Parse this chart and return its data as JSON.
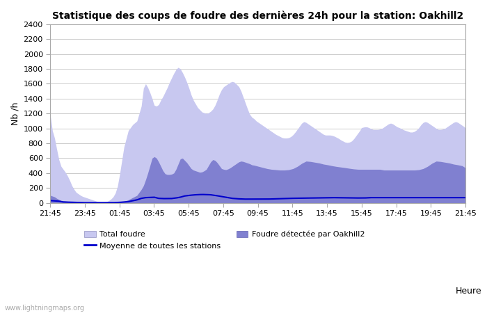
{
  "title": "Statistique des coups de foudre des dernières 24h pour la station: Oakhill2",
  "xlabel": "Heure",
  "ylabel": "Nb /h",
  "xlim_labels": [
    "21:45",
    "23:45",
    "01:45",
    "03:45",
    "05:45",
    "07:45",
    "09:45",
    "11:45",
    "13:45",
    "15:45",
    "17:45",
    "19:45",
    "21:45"
  ],
  "ylim": [
    0,
    2400
  ],
  "yticks": [
    0,
    200,
    400,
    600,
    800,
    1000,
    1200,
    1400,
    1600,
    1800,
    2000,
    2200,
    2400
  ],
  "color_total": "#c8c8f0",
  "color_detected": "#8080d0",
  "color_mean": "#0000cc",
  "watermark": "www.lightningmaps.org",
  "legend_total": "Total foudre",
  "legend_detected": "Foudre détectée par Oakhill2",
  "legend_mean": "Moyenne de toutes les stations",
  "total_keypoints_x": [
    0,
    2,
    4,
    6,
    8,
    10,
    12,
    14,
    16,
    18,
    20,
    22,
    24,
    26,
    28,
    30,
    32,
    36,
    40,
    44,
    48,
    50,
    52,
    54,
    56,
    58,
    60,
    62,
    64,
    68,
    72,
    76,
    80,
    82,
    84,
    86,
    88,
    90,
    92,
    94,
    95,
    96
  ],
  "total_keypoints_y": [
    1180,
    970,
    870,
    720,
    580,
    490,
    450,
    410,
    360,
    300,
    230,
    180,
    140,
    120,
    100,
    85,
    75,
    55,
    35,
    15,
    10,
    10,
    15,
    30,
    50,
    80,
    130,
    220,
    380,
    750,
    970,
    1050,
    1100,
    1200,
    1300,
    1540,
    1600,
    1550,
    1480,
    1400,
    1350,
    1310
  ],
  "total_keypoints_x2": [
    96,
    98,
    100,
    102,
    104,
    106,
    108,
    110,
    112,
    114,
    116,
    118,
    120,
    122,
    124,
    126,
    128,
    130,
    132,
    134,
    136,
    138,
    140,
    142,
    144,
    146,
    148,
    150,
    152,
    154,
    156,
    158,
    160,
    162,
    164,
    166,
    168,
    170,
    172,
    174,
    176,
    178,
    180,
    182,
    184,
    186,
    188,
    190,
    192
  ],
  "total_keypoints_y2": [
    1310,
    1300,
    1320,
    1380,
    1430,
    1490,
    1550,
    1620,
    1680,
    1740,
    1790,
    1820,
    1800,
    1750,
    1690,
    1620,
    1540,
    1450,
    1380,
    1330,
    1280,
    1250,
    1220,
    1210,
    1200,
    1210,
    1230,
    1260,
    1310,
    1380,
    1460,
    1520,
    1560,
    1580,
    1600,
    1620,
    1630,
    1620,
    1590,
    1560,
    1500,
    1420,
    1340,
    1260,
    1190,
    1150,
    1130,
    1100,
    1080
  ],
  "total_keypoints_x3": [
    192,
    194,
    196,
    198,
    200,
    202,
    204,
    206,
    208,
    210,
    212,
    214,
    216,
    218,
    220,
    222,
    224,
    226,
    228,
    230,
    232,
    234,
    236,
    238,
    240,
    242,
    244,
    246,
    248,
    250,
    252,
    254,
    256,
    258,
    260,
    262,
    264,
    266,
    268,
    270,
    272,
    274,
    276,
    278,
    280,
    282,
    284,
    286,
    287
  ],
  "total_keypoints_y3": [
    1080,
    1060,
    1040,
    1020,
    1000,
    980,
    960,
    940,
    920,
    905,
    890,
    875,
    870,
    870,
    875,
    890,
    915,
    950,
    990,
    1030,
    1070,
    1090,
    1080,
    1060,
    1040,
    1020,
    1000,
    980,
    960,
    940,
    920,
    910,
    910,
    910,
    905,
    895,
    880,
    865,
    845,
    830,
    815,
    810,
    815,
    830,
    860,
    900,
    940,
    980,
    1010
  ],
  "total_keypoints_x4": [
    287,
    290,
    292,
    294,
    296,
    298,
    300,
    302,
    304,
    306,
    308,
    310,
    312,
    314,
    316,
    318,
    320,
    322,
    324,
    326,
    328,
    330,
    332,
    334,
    336,
    338,
    340,
    342,
    344,
    346,
    348,
    350,
    352,
    354,
    356,
    358,
    360,
    362,
    364,
    366,
    368,
    370,
    372,
    374,
    376,
    378,
    380,
    382,
    383
  ],
  "total_keypoints_y4": [
    1010,
    1020,
    1020,
    1010,
    995,
    985,
    985,
    985,
    990,
    1000,
    1020,
    1040,
    1060,
    1070,
    1060,
    1040,
    1020,
    1010,
    995,
    980,
    970,
    960,
    950,
    950,
    960,
    980,
    1010,
    1050,
    1080,
    1090,
    1080,
    1060,
    1040,
    1020,
    1000,
    985,
    985,
    990,
    1000,
    1020,
    1040,
    1060,
    1080,
    1090,
    1080,
    1060,
    1040,
    1020,
    1000
  ],
  "detected_keypoints_x": [
    0,
    2,
    4,
    6,
    8,
    10,
    12,
    14,
    16,
    18,
    20,
    22,
    24,
    26,
    28,
    30,
    32,
    36,
    40,
    44,
    48,
    52,
    56,
    60,
    64,
    68,
    72,
    76,
    80,
    82,
    84,
    86,
    88,
    90,
    92,
    94,
    96
  ],
  "detected_keypoints_y": [
    100,
    90,
    80,
    60,
    45,
    32,
    28,
    24,
    20,
    16,
    12,
    9,
    7,
    6,
    5,
    4,
    3,
    2,
    2,
    1,
    1,
    1,
    1,
    2,
    6,
    18,
    40,
    70,
    100,
    140,
    180,
    230,
    310,
    400,
    500,
    600,
    620
  ],
  "detected_keypoints_x2": [
    96,
    98,
    100,
    102,
    104,
    106,
    108,
    110,
    112,
    114,
    116,
    118,
    120,
    122,
    124,
    126,
    128,
    130,
    132,
    134,
    136,
    138,
    140,
    142,
    144,
    146,
    148,
    150,
    152,
    154,
    156,
    158,
    160,
    162,
    164,
    166,
    168,
    170,
    172,
    174,
    176,
    178,
    180,
    182,
    184,
    186,
    188,
    190,
    192
  ],
  "detected_keypoints_y2": [
    620,
    600,
    550,
    490,
    430,
    390,
    380,
    380,
    385,
    400,
    450,
    520,
    590,
    600,
    570,
    540,
    500,
    460,
    440,
    430,
    420,
    410,
    415,
    430,
    450,
    500,
    550,
    580,
    570,
    540,
    500,
    460,
    450,
    445,
    455,
    470,
    490,
    510,
    530,
    550,
    560,
    555,
    545,
    535,
    525,
    510,
    505,
    498,
    490
  ],
  "detected_keypoints_x3": [
    192,
    196,
    200,
    204,
    208,
    212,
    216,
    220,
    224,
    228,
    232,
    236,
    240,
    244,
    248,
    252,
    256,
    260,
    264,
    268,
    272,
    276,
    280,
    284,
    287
  ],
  "detected_keypoints_y3": [
    490,
    475,
    460,
    450,
    445,
    440,
    440,
    445,
    460,
    490,
    530,
    560,
    555,
    545,
    535,
    520,
    510,
    498,
    488,
    480,
    472,
    463,
    455,
    450,
    450
  ],
  "detected_keypoints_x4": [
    287,
    292,
    296,
    300,
    304,
    308,
    312,
    316,
    320,
    324,
    328,
    332,
    336,
    340,
    344,
    348,
    352,
    356,
    360,
    364,
    368,
    372,
    376,
    380,
    383
  ],
  "detected_keypoints_y4": [
    450,
    450,
    450,
    450,
    450,
    440,
    440,
    440,
    440,
    440,
    440,
    440,
    440,
    445,
    460,
    490,
    530,
    560,
    555,
    545,
    535,
    520,
    510,
    498,
    470
  ],
  "mean_keypoints_x": [
    0,
    4,
    8,
    12,
    16,
    20,
    24,
    28,
    32,
    36,
    40,
    44,
    48,
    56,
    64,
    72,
    80,
    84,
    88,
    92,
    96,
    100,
    104,
    108,
    112,
    116,
    120,
    122,
    124,
    128,
    132,
    136,
    140,
    144,
    148,
    152,
    156,
    160,
    164,
    168,
    172,
    176,
    180,
    192,
    200,
    220,
    240,
    260,
    280,
    287,
    290,
    295,
    383
  ],
  "mean_keypoints_y": [
    30,
    26,
    22,
    11,
    9,
    6,
    4,
    3,
    2,
    2,
    1,
    1,
    1,
    1,
    6,
    16,
    40,
    60,
    70,
    72,
    75,
    60,
    57,
    57,
    58,
    65,
    76,
    84,
    92,
    100,
    106,
    110,
    112,
    111,
    108,
    100,
    90,
    80,
    70,
    60,
    55,
    52,
    50,
    50,
    50,
    60,
    65,
    70,
    65,
    65,
    65,
    70,
    70
  ],
  "n_points": 384
}
